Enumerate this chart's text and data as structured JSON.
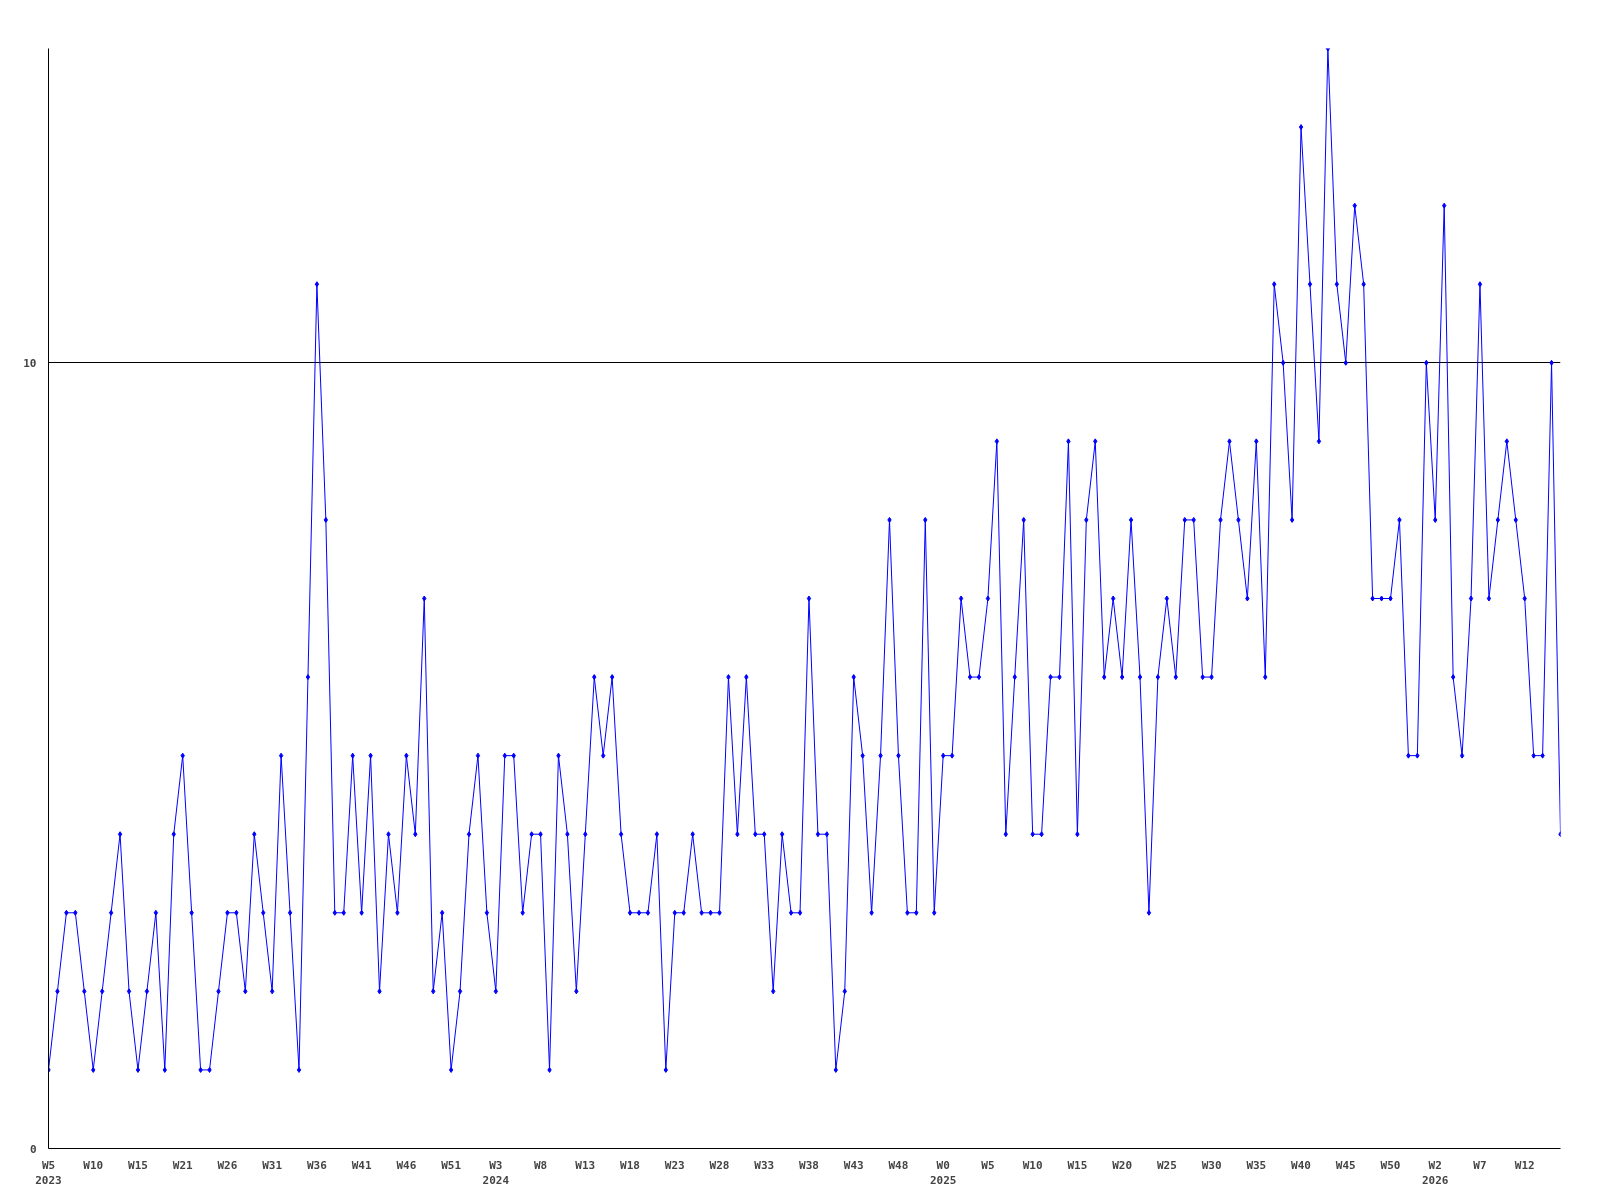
{
  "chart_data": {
    "type": "line",
    "categories": [
      "W5\n2023",
      null,
      null,
      null,
      null,
      "W10",
      null,
      null,
      null,
      null,
      "W15",
      null,
      null,
      null,
      null,
      "W21",
      null,
      null,
      null,
      null,
      "W26",
      null,
      null,
      null,
      null,
      "W31",
      null,
      null,
      null,
      null,
      "W36",
      null,
      null,
      null,
      null,
      "W41",
      null,
      null,
      null,
      null,
      "W46",
      null,
      null,
      null,
      null,
      "W51",
      null,
      null,
      null,
      null,
      "W3\n2024",
      null,
      null,
      null,
      null,
      "W8",
      null,
      null,
      null,
      null,
      "W13",
      null,
      null,
      null,
      null,
      "W18",
      null,
      null,
      null,
      null,
      "W23",
      null,
      null,
      null,
      null,
      "W28",
      null,
      null,
      null,
      null,
      "W33",
      null,
      null,
      null,
      null,
      "W38",
      null,
      null,
      null,
      null,
      "W43",
      null,
      null,
      null,
      null,
      "W48",
      null,
      null,
      null,
      null,
      "W0\n2025",
      null,
      null,
      null,
      null,
      "W5",
      null,
      null,
      null,
      null,
      "W10",
      null,
      null,
      null,
      null,
      "W15",
      null,
      null,
      null,
      null,
      "W20",
      null,
      null,
      null,
      null,
      "W25",
      null,
      null,
      null,
      null,
      "W30",
      null,
      null,
      null,
      null,
      "W35",
      null,
      null,
      null,
      null,
      "W40",
      null,
      null,
      null,
      null,
      "W45",
      null,
      null,
      null,
      null,
      "W50",
      null,
      null,
      null,
      null,
      "W2\n2026",
      null,
      null,
      null,
      null,
      "W7",
      null,
      null,
      null,
      null,
      "W12",
      null,
      null,
      null,
      null
    ],
    "series": [
      {
        "color": "#0000ff",
        "values": [
          1,
          2,
          3,
          3,
          2,
          1,
          2,
          3,
          4,
          2,
          1,
          2,
          3,
          1,
          4,
          5,
          3,
          1,
          1,
          2,
          3,
          3,
          2,
          4,
          3,
          2,
          5,
          3,
          1,
          6,
          11,
          8,
          3,
          3,
          5,
          3,
          5,
          2,
          4,
          3,
          5,
          4,
          7,
          2,
          3,
          1,
          2,
          4,
          5,
          3,
          2,
          5,
          5,
          3,
          4,
          4,
          1,
          5,
          4,
          2,
          4,
          6,
          5,
          6,
          4,
          3,
          3,
          3,
          4,
          1,
          3,
          3,
          4,
          3,
          3,
          3,
          6,
          4,
          6,
          4,
          4,
          2,
          4,
          3,
          3,
          7,
          4,
          4,
          1,
          2,
          6,
          5,
          3,
          5,
          8,
          5,
          3,
          3,
          8,
          3,
          5,
          5,
          7,
          6,
          6,
          7,
          9,
          4,
          6,
          8,
          4,
          4,
          6,
          6,
          9,
          4,
          8,
          9,
          6,
          7,
          6,
          8,
          6,
          3,
          6,
          7,
          6,
          8,
          8,
          6,
          6,
          8,
          9,
          8,
          7,
          9,
          6,
          11,
          10,
          8,
          13,
          11,
          9,
          14,
          11,
          10,
          12,
          11,
          7,
          7,
          7,
          8,
          5,
          5,
          10,
          8,
          12,
          6,
          5,
          7,
          11,
          7,
          8,
          9,
          8,
          7,
          5,
          5,
          10,
          4
        ]
      }
    ],
    "ylim": [
      0,
      14
    ],
    "yticks": [
      0,
      10
    ],
    "grid": "y",
    "marker": "diamond",
    "line_style": "solid"
  }
}
